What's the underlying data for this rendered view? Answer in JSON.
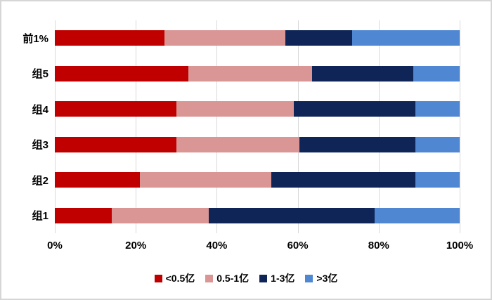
{
  "chart": {
    "background": "#FFFFFF",
    "frame_border_color": "#D6D6D6",
    "gridline_color": "#D9D9D9",
    "text_color": "#000000"
  },
  "chart_data": {
    "type": "bar",
    "orientation": "horizontal",
    "stacked": true,
    "title": "",
    "xlabel": "",
    "ylabel": "",
    "xlim": [
      0,
      100
    ],
    "grid": true,
    "legend_position": "bottom",
    "x_ticks": [
      "0%",
      "20%",
      "40%",
      "60%",
      "80%",
      "100%"
    ],
    "categories": [
      "前1%",
      "组5",
      "组4",
      "组3",
      "组2",
      "组1"
    ],
    "series": [
      {
        "name": "<0.5亿",
        "color": "#C00000",
        "values": [
          27,
          33,
          30,
          30,
          21,
          14
        ]
      },
      {
        "name": "0.5-1亿",
        "color": "#D99694",
        "values": [
          30,
          30.5,
          29,
          30.5,
          32.5,
          24
        ]
      },
      {
        "name": "1-3亿",
        "color": "#0F2557",
        "values": [
          16.5,
          25,
          30,
          28.5,
          35.5,
          41
        ]
      },
      {
        "name": ">3亿",
        "color": "#4F87D2",
        "values": [
          26.5,
          11.5,
          11,
          11,
          11,
          21
        ]
      }
    ]
  }
}
